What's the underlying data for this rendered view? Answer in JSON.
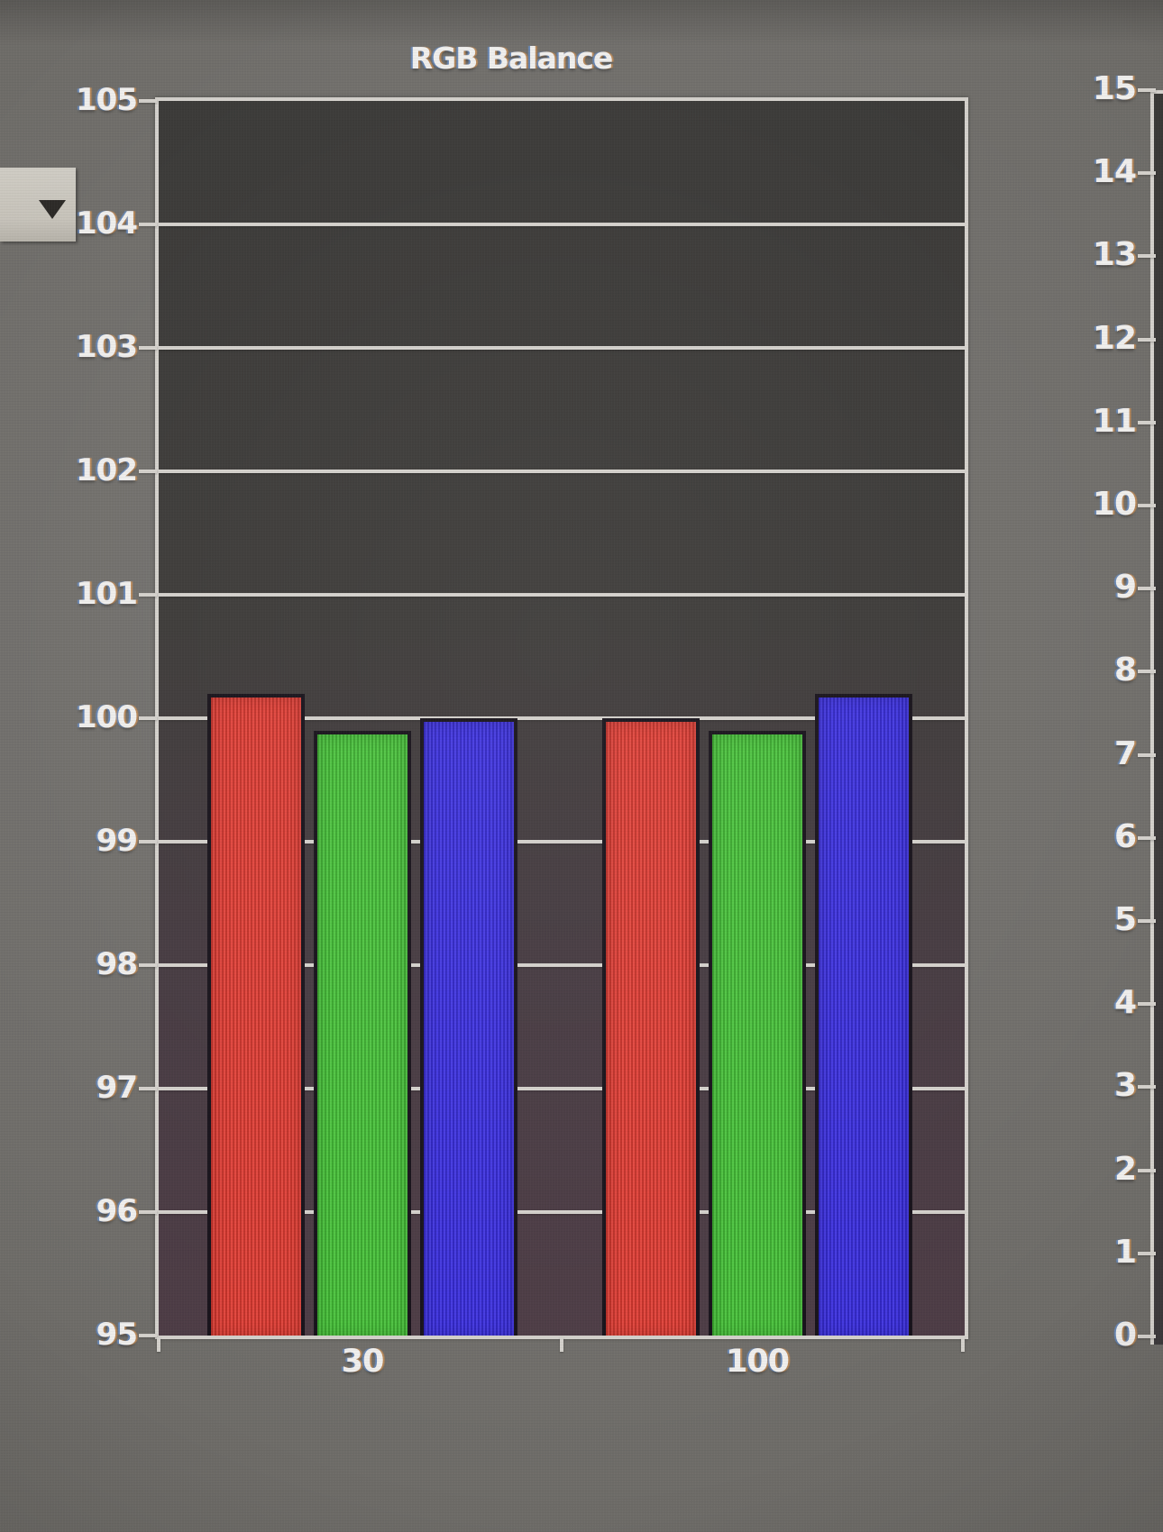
{
  "controls": {
    "dropdown_button": {
      "icon": "caret-down-icon"
    }
  },
  "chart_data": [
    {
      "type": "bar",
      "title": "RGB Balance",
      "categories": [
        "30",
        "100"
      ],
      "series": [
        {
          "name": "Red",
          "color": "#e03a31",
          "values": [
            100.2,
            100.0
          ]
        },
        {
          "name": "Green",
          "color": "#44c136",
          "values": [
            99.9,
            99.9
          ]
        },
        {
          "name": "Blue",
          "color": "#382cdf",
          "values": [
            100.0,
            100.2
          ]
        }
      ],
      "xlabel": "",
      "ylabel": "",
      "ylim": [
        95,
        105
      ],
      "yticks": [
        105,
        104,
        103,
        102,
        101,
        100,
        99,
        98,
        97,
        96,
        95
      ],
      "grid": true,
      "legend_position": "none",
      "gridline_color": "#d3d0cb",
      "label_color": "#efeeec",
      "plot_background_top": "#3a3937",
      "plot_background_bottom": "#4d3c45",
      "bar_border_color": "#17121a"
    },
    {
      "type": "bar",
      "title": "",
      "ylim": [
        0,
        15
      ],
      "yticks": [
        15,
        14,
        13,
        12,
        11,
        10,
        9,
        8,
        7,
        6,
        5,
        4,
        3,
        2,
        1,
        0
      ],
      "grid": true,
      "legend_position": "none"
    }
  ]
}
